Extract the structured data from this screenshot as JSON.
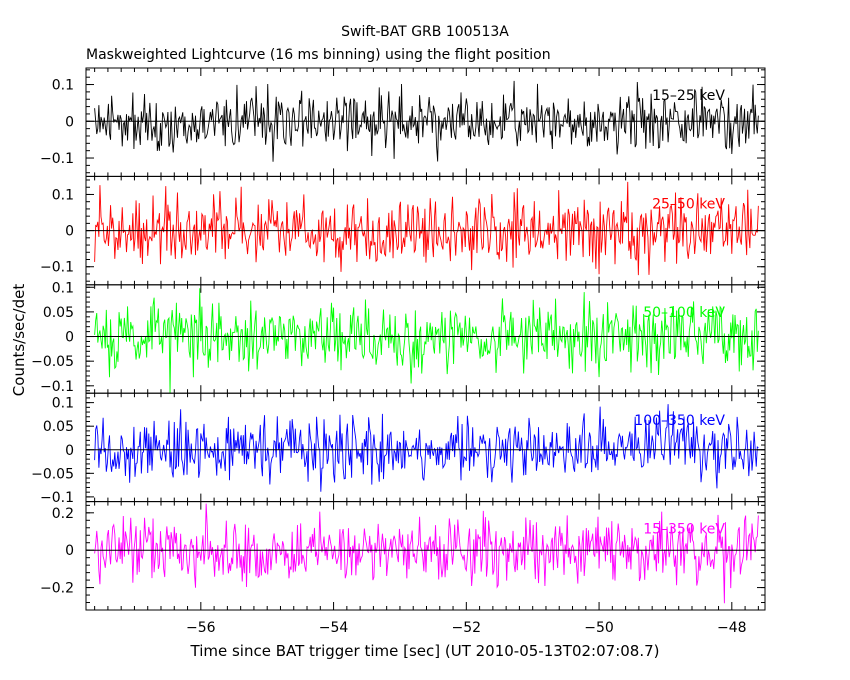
{
  "chart_data": {
    "type": "line",
    "title": "Swift-BAT GRB 100513A",
    "subtitle": "Maskweighted Lightcurve (16 ms binning) using the flight position",
    "xlabel": "Time since BAT trigger time [sec] (UT 2010-05-13T02:07:08.7)",
    "ylabel": "Counts/sec/det",
    "xlim": [
      -57.73,
      -47.5
    ],
    "xticks": [
      -56,
      -54,
      -52,
      -50,
      -48
    ],
    "xtick_labels": [
      "−56",
      "−54",
      "−52",
      "−50",
      "−48"
    ],
    "binning_sec": 0.016,
    "data_range": [
      -57.6,
      -47.6
    ],
    "grid": false,
    "panels": [
      {
        "band": "15–25 keV",
        "color": "#000000",
        "ylim": [
          -0.15,
          0.145
        ],
        "yticks": [
          -0.1,
          0,
          0.1
        ],
        "ytick_labels": [
          "−0.1",
          "0",
          "0.1"
        ],
        "noise_sigma": 0.04,
        "y_extent": [
          -0.135,
          0.11
        ],
        "seed": 11
      },
      {
        "band": "25–50 keV",
        "color": "#ff0000",
        "ylim": [
          -0.15,
          0.15
        ],
        "yticks": [
          -0.1,
          0,
          0.1
        ],
        "ytick_labels": [
          "−0.1",
          "0",
          "0.1"
        ],
        "noise_sigma": 0.045,
        "y_extent": [
          -0.135,
          0.15
        ],
        "seed": 23
      },
      {
        "band": "50–100 keV",
        "color": "#00ff00",
        "ylim": [
          -0.115,
          0.105
        ],
        "yticks": [
          -0.1,
          -0.05,
          0,
          0.05,
          0.1
        ],
        "ytick_labels": [
          "−0.1",
          "−0.05",
          "0",
          "0.05",
          "0.1"
        ],
        "noise_sigma": 0.035,
        "y_extent": [
          -0.115,
          0.1
        ],
        "seed": 37
      },
      {
        "band": "100–350 keV",
        "color": "#0000ff",
        "ylim": [
          -0.11,
          0.12
        ],
        "yticks": [
          -0.1,
          -0.05,
          0,
          0.05,
          0.1
        ],
        "ytick_labels": [
          "−0.1",
          "−0.05",
          "0",
          "0.05",
          "0.1"
        ],
        "noise_sigma": 0.033,
        "y_extent": [
          -0.11,
          0.115
        ],
        "seed": 53
      },
      {
        "band": "15–350 keV",
        "color": "#ff00ff",
        "ylim": [
          -0.32,
          0.26
        ],
        "yticks": [
          -0.2,
          0,
          0.2
        ],
        "ytick_labels": [
          "−0.2",
          "0",
          "0.2"
        ],
        "noise_sigma": 0.085,
        "y_extent": [
          -0.3,
          0.25
        ],
        "seed": 71
      }
    ]
  }
}
